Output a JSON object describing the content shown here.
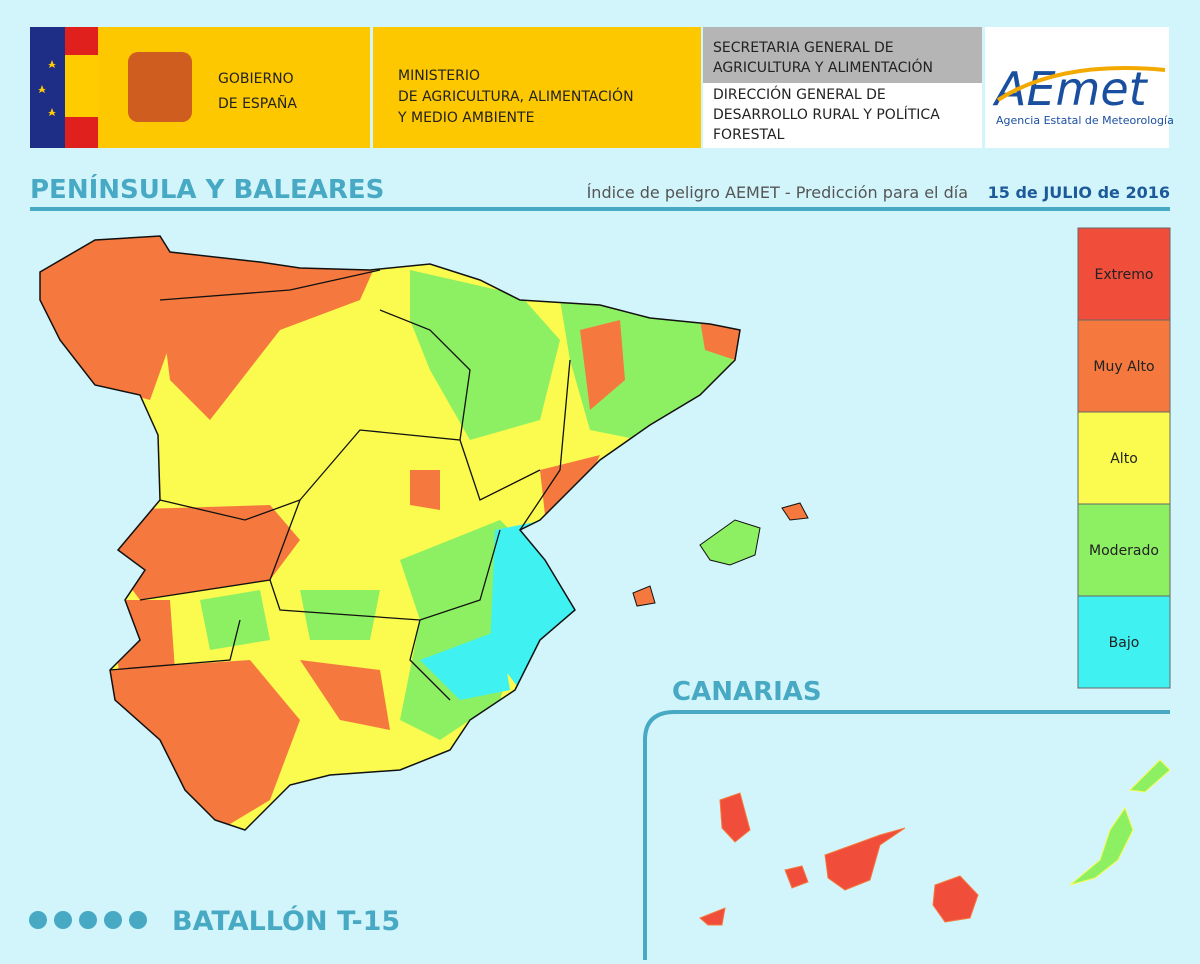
{
  "header": {
    "government": [
      "GOBIERNO",
      "DE ESPAÑA"
    ],
    "ministry": [
      "MINISTERIO",
      "DE AGRICULTURA, ALIMENTACIÓN",
      "Y MEDIO AMBIENTE"
    ],
    "secretariat": [
      "SECRETARIA GENERAL DE",
      "AGRICULTURA Y ALIMENTACIÓN"
    ],
    "directorate": [
      "DIRECCIÓN GENERAL DE",
      "DESARROLLO RURAL Y POLÍTICA",
      "FORESTAL"
    ],
    "logo": {
      "name": "AEmet",
      "subtitle": "Agencia Estatal de Meteorología"
    }
  },
  "map": {
    "title": "PENÍNSULA Y BALEARES",
    "subtitle": "Índice de peligro AEMET - Predicción para el día",
    "date": "15 de JULIO de 2016",
    "inset_title": "CANARIAS"
  },
  "legend": [
    {
      "label": "Extremo",
      "color": "#f04e3a"
    },
    {
      "label": "Muy Alto",
      "color": "#f5793f"
    },
    {
      "label": "Alto",
      "color": "#fbfb4f"
    },
    {
      "label": "Moderado",
      "color": "#8df062"
    },
    {
      "label": "Bajo",
      "color": "#3ff1f1"
    }
  ],
  "footer": {
    "text": "BATALLÓN T-15"
  }
}
